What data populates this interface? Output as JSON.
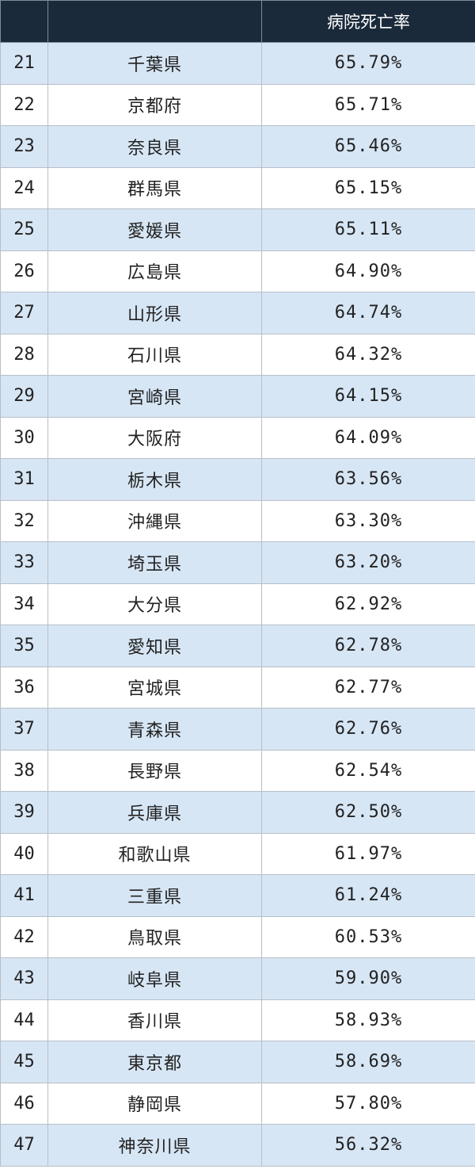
{
  "header": {
    "rank": "",
    "prefecture": "",
    "rate": "病院死亡率"
  },
  "rows": [
    {
      "rank": "21",
      "prefecture": "千葉県",
      "rate": "65.79%"
    },
    {
      "rank": "22",
      "prefecture": "京都府",
      "rate": "65.71%"
    },
    {
      "rank": "23",
      "prefecture": "奈良県",
      "rate": "65.46%"
    },
    {
      "rank": "24",
      "prefecture": "群馬県",
      "rate": "65.15%"
    },
    {
      "rank": "25",
      "prefecture": "愛媛県",
      "rate": "65.11%"
    },
    {
      "rank": "26",
      "prefecture": "広島県",
      "rate": "64.90%"
    },
    {
      "rank": "27",
      "prefecture": "山形県",
      "rate": "64.74%"
    },
    {
      "rank": "28",
      "prefecture": "石川県",
      "rate": "64.32%"
    },
    {
      "rank": "29",
      "prefecture": "宮崎県",
      "rate": "64.15%"
    },
    {
      "rank": "30",
      "prefecture": "大阪府",
      "rate": "64.09%"
    },
    {
      "rank": "31",
      "prefecture": "栃木県",
      "rate": "63.56%"
    },
    {
      "rank": "32",
      "prefecture": "沖縄県",
      "rate": "63.30%"
    },
    {
      "rank": "33",
      "prefecture": "埼玉県",
      "rate": "63.20%"
    },
    {
      "rank": "34",
      "prefecture": "大分県",
      "rate": "62.92%"
    },
    {
      "rank": "35",
      "prefecture": "愛知県",
      "rate": "62.78%"
    },
    {
      "rank": "36",
      "prefecture": "宮城県",
      "rate": "62.77%"
    },
    {
      "rank": "37",
      "prefecture": "青森県",
      "rate": "62.76%"
    },
    {
      "rank": "38",
      "prefecture": "長野県",
      "rate": "62.54%"
    },
    {
      "rank": "39",
      "prefecture": "兵庫県",
      "rate": "62.50%"
    },
    {
      "rank": "40",
      "prefecture": "和歌山県",
      "rate": "61.97%"
    },
    {
      "rank": "41",
      "prefecture": "三重県",
      "rate": "61.24%"
    },
    {
      "rank": "42",
      "prefecture": "鳥取県",
      "rate": "60.53%"
    },
    {
      "rank": "43",
      "prefecture": "岐阜県",
      "rate": "59.90%"
    },
    {
      "rank": "44",
      "prefecture": "香川県",
      "rate": "58.93%"
    },
    {
      "rank": "45",
      "prefecture": "東京都",
      "rate": "58.69%"
    },
    {
      "rank": "46",
      "prefecture": "静岡県",
      "rate": "57.80%"
    },
    {
      "rank": "47",
      "prefecture": "神奈川県",
      "rate": "56.32%"
    }
  ],
  "colors": {
    "header_bg": "#1b2a3a",
    "header_text": "#ffffff",
    "row_alt_bg": "#d7e6f5",
    "row_bg": "#ffffff",
    "border": "#b8bfc7",
    "text": "#222222"
  }
}
